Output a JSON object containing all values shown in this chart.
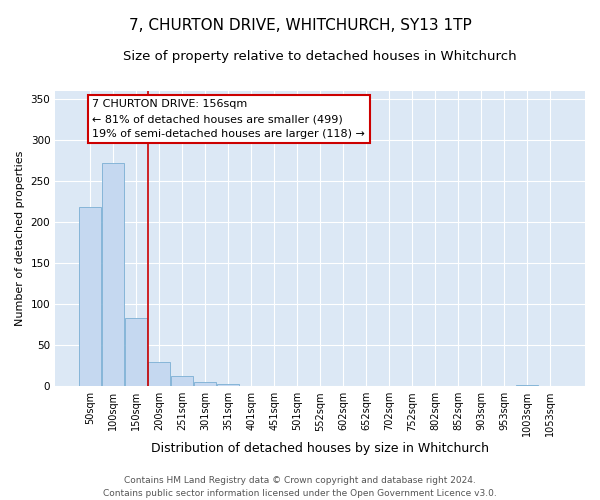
{
  "title": "7, CHURTON DRIVE, WHITCHURCH, SY13 1TP",
  "subtitle": "Size of property relative to detached houses in Whitchurch",
  "xlabel": "Distribution of detached houses by size in Whitchurch",
  "ylabel": "Number of detached properties",
  "bar_color": "#c5d8f0",
  "bar_edge_color": "#7bafd4",
  "plot_bg_color": "#dce8f5",
  "grid_color": "#ffffff",
  "fig_bg_color": "#ffffff",
  "categories": [
    "50sqm",
    "100sqm",
    "150sqm",
    "200sqm",
    "251sqm",
    "301sqm",
    "351sqm",
    "401sqm",
    "451sqm",
    "501sqm",
    "552sqm",
    "602sqm",
    "652sqm",
    "702sqm",
    "752sqm",
    "802sqm",
    "852sqm",
    "903sqm",
    "953sqm",
    "1003sqm",
    "1053sqm"
  ],
  "values": [
    218,
    272,
    83,
    29,
    13,
    5,
    3,
    0,
    0,
    0,
    0,
    0,
    0,
    0,
    0,
    0,
    0,
    0,
    0,
    2,
    0
  ],
  "ylim": [
    0,
    360
  ],
  "yticks": [
    0,
    50,
    100,
    150,
    200,
    250,
    300,
    350
  ],
  "property_label": "7 CHURTON DRIVE: 156sqm",
  "annotation_line1": "← 81% of detached houses are smaller (499)",
  "annotation_line2": "19% of semi-detached houses are larger (118) →",
  "vline_color": "#cc0000",
  "vline_x": 2.5,
  "annotation_box_color": "#ffffff",
  "annotation_box_edge": "#cc0000",
  "footer_line1": "Contains HM Land Registry data © Crown copyright and database right 2024.",
  "footer_line2": "Contains public sector information licensed under the Open Government Licence v3.0.",
  "title_fontsize": 11,
  "subtitle_fontsize": 9.5,
  "ylabel_fontsize": 8,
  "xlabel_fontsize": 9,
  "tick_fontsize": 7,
  "annotation_fontsize": 8,
  "footer_fontsize": 6.5
}
